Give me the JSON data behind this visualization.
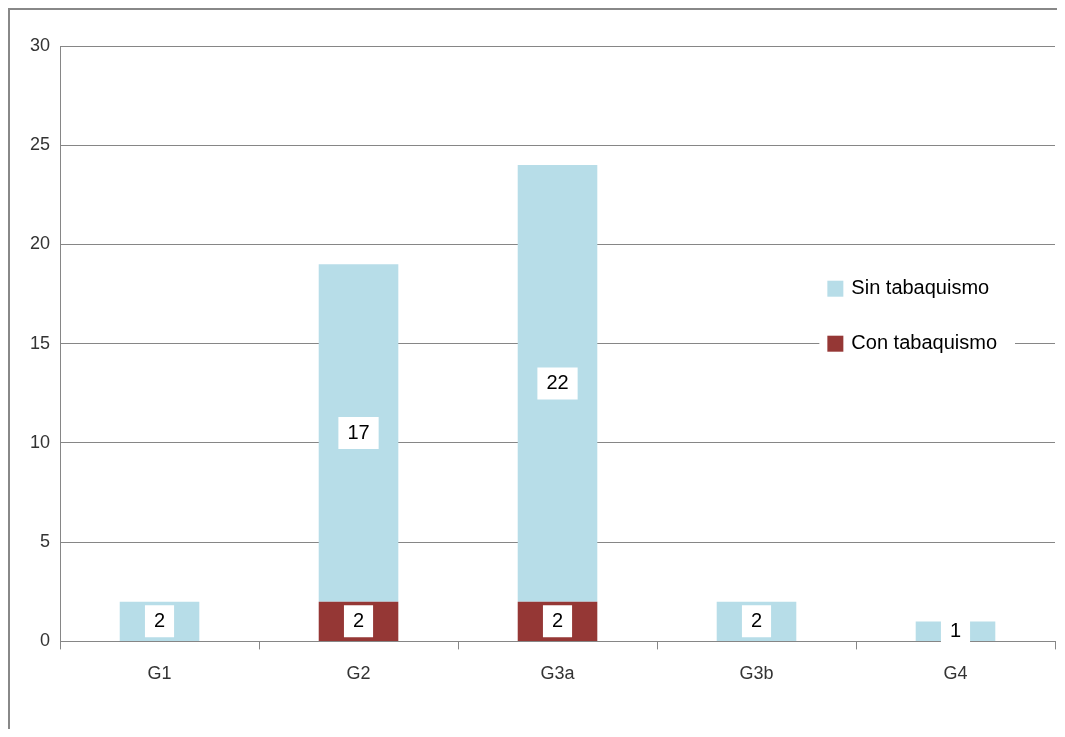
{
  "chart_data": {
    "type": "bar",
    "stacked": true,
    "categories": [
      "G1",
      "G2",
      "G3a",
      "G3b",
      "G4"
    ],
    "series": [
      {
        "name": "Con tabaquismo",
        "color": "#953735",
        "values": [
          null,
          2,
          2,
          null,
          null
        ],
        "value_labels": [
          null,
          "2",
          "2",
          null,
          null
        ]
      },
      {
        "name": "Sin tabaquismo",
        "color": "#b7dde8",
        "values": [
          2,
          17,
          22,
          2,
          1
        ],
        "value_labels": [
          "2",
          "17",
          "22",
          "2",
          "1"
        ]
      }
    ],
    "ylim": [
      0,
      30
    ],
    "yticks": [
      0,
      5,
      10,
      15,
      20,
      25,
      30
    ],
    "grid": "y",
    "legend": "right"
  }
}
